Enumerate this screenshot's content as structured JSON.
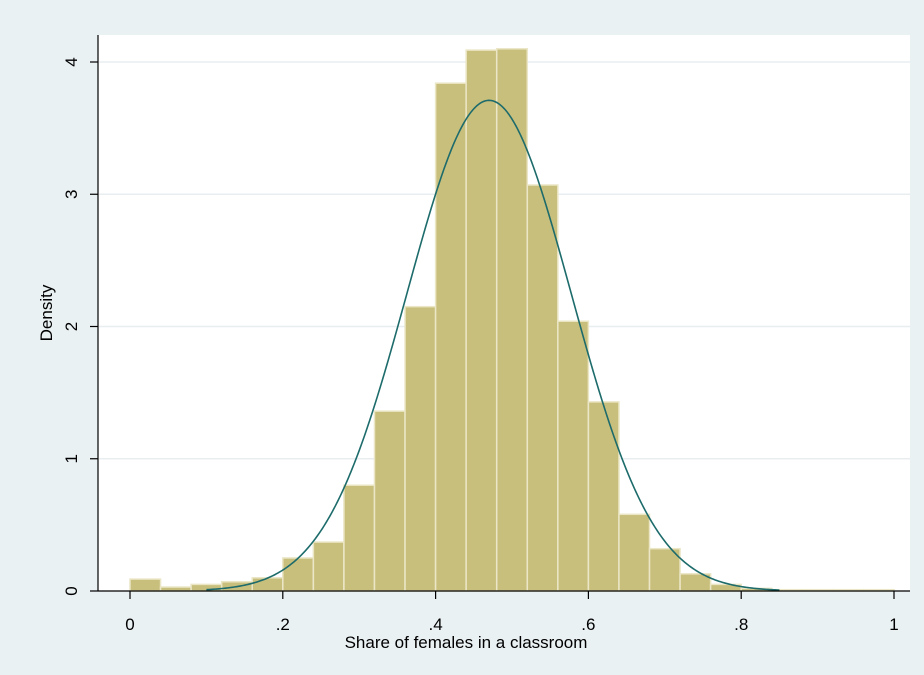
{
  "chart_data": {
    "type": "bar",
    "subtype": "histogram with normal density overlay",
    "title": "",
    "xlabel": "Share of females in a classroom",
    "ylabel": "Density",
    "xlim": [
      0,
      1
    ],
    "ylim": [
      0,
      4.2
    ],
    "x_ticks": [
      0,
      0.2,
      0.4,
      0.6,
      0.8,
      1
    ],
    "x_tick_labels": [
      "0",
      ".2",
      ".4",
      ".6",
      ".8",
      "1"
    ],
    "y_ticks": [
      0,
      1,
      2,
      3,
      4
    ],
    "y_tick_labels": [
      "0",
      "1",
      "2",
      "3",
      "4"
    ],
    "grid": "horizontal",
    "bin_width": 0.04,
    "bins": [
      {
        "start": 0.0,
        "end": 0.04,
        "value": 0.09
      },
      {
        "start": 0.04,
        "end": 0.08,
        "value": 0.03
      },
      {
        "start": 0.08,
        "end": 0.12,
        "value": 0.05
      },
      {
        "start": 0.12,
        "end": 0.16,
        "value": 0.07
      },
      {
        "start": 0.16,
        "end": 0.2,
        "value": 0.1
      },
      {
        "start": 0.2,
        "end": 0.24,
        "value": 0.25
      },
      {
        "start": 0.24,
        "end": 0.28,
        "value": 0.37
      },
      {
        "start": 0.28,
        "end": 0.32,
        "value": 0.8
      },
      {
        "start": 0.32,
        "end": 0.36,
        "value": 1.36
      },
      {
        "start": 0.36,
        "end": 0.4,
        "value": 2.15
      },
      {
        "start": 0.4,
        "end": 0.44,
        "value": 3.84
      },
      {
        "start": 0.44,
        "end": 0.48,
        "value": 4.09
      },
      {
        "start": 0.48,
        "end": 0.52,
        "value": 4.1
      },
      {
        "start": 0.52,
        "end": 0.56,
        "value": 3.07
      },
      {
        "start": 0.56,
        "end": 0.6,
        "value": 2.04
      },
      {
        "start": 0.6,
        "end": 0.64,
        "value": 1.43
      },
      {
        "start": 0.64,
        "end": 0.68,
        "value": 0.58
      },
      {
        "start": 0.68,
        "end": 0.72,
        "value": 0.32
      },
      {
        "start": 0.72,
        "end": 0.76,
        "value": 0.13
      },
      {
        "start": 0.76,
        "end": 0.8,
        "value": 0.05
      },
      {
        "start": 0.8,
        "end": 0.84,
        "value": 0.02
      },
      {
        "start": 0.84,
        "end": 0.88,
        "value": 0.01
      },
      {
        "start": 0.88,
        "end": 0.92,
        "value": 0.01
      },
      {
        "start": 0.92,
        "end": 0.96,
        "value": 0.01
      },
      {
        "start": 0.96,
        "end": 1.0,
        "value": 0.01
      }
    ],
    "density_curve": {
      "type": "normal",
      "mean": 0.47,
      "sd": 0.1075,
      "peak": 3.71
    },
    "colors": {
      "bar_fill": "#c9bf7d",
      "bar_edge": "#ebe6c6",
      "curve": "#1d6b6b",
      "plot_bg": "#ffffff",
      "outer_bg": "#eaf1f3",
      "grid": "#e8eef0",
      "axis": "#000000"
    }
  }
}
